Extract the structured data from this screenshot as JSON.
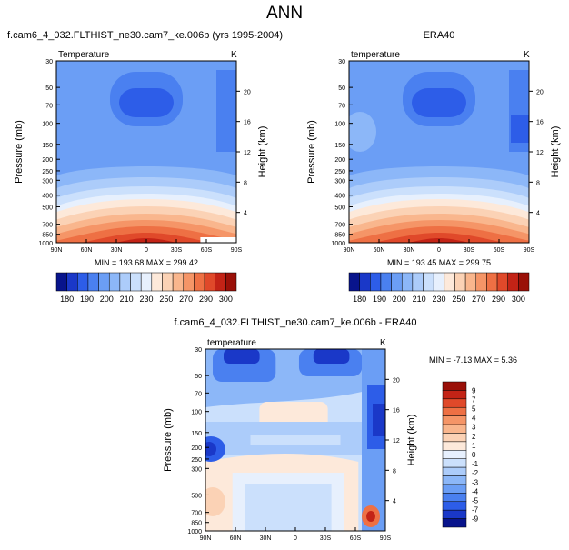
{
  "page": {
    "title": "ANN"
  },
  "colors": {
    "scale": [
      "#08148c",
      "#1a38c8",
      "#2d5de8",
      "#4a80f0",
      "#6b9ef5",
      "#8cb7f8",
      "#acccfa",
      "#cbe0fc",
      "#e7f0fd",
      "#fde9da",
      "#fbd2b5",
      "#f9b68d",
      "#f59567",
      "#ee7044",
      "#e0492a",
      "#c32316",
      "#9a1008"
    ],
    "anom": [
      "#08148c",
      "#1a38c8",
      "#2d5de8",
      "#4a80f0",
      "#6b9ef5",
      "#8cb7f8",
      "#acccfa",
      "#cbe0fc",
      "#e7f0fd",
      "#fde9da",
      "#fbd2b5",
      "#f9b68d",
      "#f59567",
      "#ee7044",
      "#e0492a",
      "#c32316",
      "#9a1008"
    ]
  },
  "chart_data": [
    {
      "type": "heatmap",
      "title": "f.cam6_4_032.FLTHIST_ne30.cam7_ke.006b (yrs 1995-2004)",
      "left_label": "Temperature",
      "right_label": "K",
      "ylabel": "Pressure (mb)",
      "y2label": "Height (km)",
      "xticks": [
        "90N",
        "60N",
        "30N",
        "0",
        "30S",
        "60S",
        "90S"
      ],
      "yticks": [
        "30",
        "50",
        "70",
        "100",
        "150",
        "200",
        "250",
        "300",
        "400",
        "500",
        "700",
        "850",
        "1000"
      ],
      "y2ticks": [
        "20",
        "16",
        "12",
        "8",
        "4"
      ],
      "stats": "MIN = 193.68   MAX = 299.42",
      "colorbar_labels": [
        "180",
        "190",
        "200",
        "210",
        "230",
        "250",
        "270",
        "290",
        "300"
      ],
      "levels": [
        180,
        185,
        190,
        195,
        200,
        205,
        210,
        220,
        230,
        240,
        250,
        260,
        270,
        280,
        290,
        295,
        300
      ],
      "min": 193.68,
      "max": 299.42
    },
    {
      "type": "heatmap",
      "title": "ERA40",
      "left_label": "temperature",
      "right_label": "K",
      "ylabel": "Pressure (mb)",
      "y2label": "Height (km)",
      "xticks": [
        "90N",
        "60N",
        "30N",
        "0",
        "30S",
        "60S",
        "90S"
      ],
      "yticks": [
        "30",
        "50",
        "70",
        "100",
        "150",
        "200",
        "250",
        "300",
        "400",
        "500",
        "700",
        "850",
        "1000"
      ],
      "y2ticks": [
        "20",
        "16",
        "12",
        "8",
        "4"
      ],
      "stats": "MIN = 193.45   MAX = 299.75",
      "colorbar_labels": [
        "180",
        "190",
        "200",
        "210",
        "230",
        "250",
        "270",
        "290",
        "300"
      ],
      "levels": [
        180,
        185,
        190,
        195,
        200,
        205,
        210,
        220,
        230,
        240,
        250,
        260,
        270,
        280,
        290,
        295,
        300
      ],
      "min": 193.45,
      "max": 299.75
    },
    {
      "type": "heatmap",
      "title": "f.cam6_4_032.FLTHIST_ne30.cam7_ke.006b - ERA40",
      "left_label": "temperature",
      "right_label": "K",
      "ylabel": "Pressure (mb)",
      "y2label": "Height (km)",
      "xticks": [
        "90N",
        "60N",
        "30N",
        "0",
        "30S",
        "60S",
        "90S"
      ],
      "yticks": [
        "30",
        "50",
        "70",
        "100",
        "150",
        "200",
        "250",
        "300",
        "500",
        "700",
        "850",
        "1000"
      ],
      "y2ticks": [
        "20",
        "16",
        "12",
        "8",
        "4"
      ],
      "stats": "MIN = -7.13   MAX =  5.36",
      "colorbar_labels": [
        "9",
        "7",
        "5",
        "4",
        "3",
        "2",
        "1",
        "0",
        "-1",
        "-2",
        "-3",
        "-4",
        "-5",
        "-7",
        "-9"
      ],
      "min": -7.13,
      "max": 5.36
    }
  ]
}
